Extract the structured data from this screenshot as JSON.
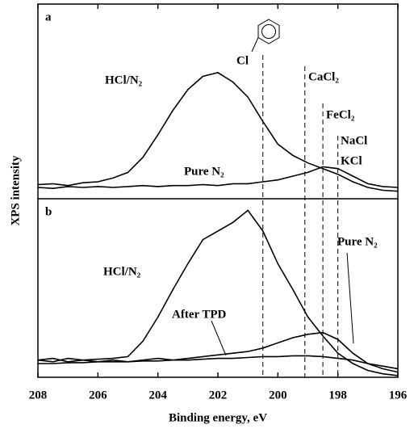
{
  "ylabel": "XPS intensity",
  "reference_lines": [
    {
      "labels": [
        "Cl"
      ],
      "x": 200.5
    },
    {
      "labels": [
        "CaCl₂"
      ],
      "x": 199.1
    },
    {
      "labels": [
        "FeCl₂"
      ],
      "x": 198.5
    },
    {
      "labels": [
        "NaCl",
        "KCl"
      ],
      "x": 198.0
    }
  ],
  "chart_data": [
    {
      "type": "line",
      "label": "a",
      "x": [
        208,
        207.5,
        207,
        206.5,
        206,
        205.5,
        205,
        204.5,
        204,
        203.5,
        203,
        202.5,
        202,
        201.5,
        201,
        200.5,
        200,
        199.5,
        199,
        198.5,
        198,
        197.5,
        197,
        196.5,
        196
      ],
      "xlim": [
        208,
        196
      ],
      "ylim": [
        0,
        100
      ],
      "series": [
        {
          "name": "HCl/N₂",
          "color": "#000000",
          "values": [
            7.5,
            8,
            7,
            8.5,
            9,
            11,
            14,
            22,
            34,
            47,
            58,
            65,
            67,
            62,
            54,
            41,
            29,
            23,
            19,
            16,
            13,
            9,
            6,
            4.5,
            4
          ]
        },
        {
          "name": "Pure N₂",
          "color": "#000000",
          "values": [
            6,
            5.5,
            6.5,
            6,
            6.5,
            6,
            6.5,
            7,
            6.5,
            7,
            7,
            7.5,
            7,
            8,
            8,
            9,
            10,
            12,
            14,
            17,
            16,
            12,
            8,
            6.5,
            6
          ]
        }
      ]
    },
    {
      "type": "line",
      "label": "b",
      "xlabel": "Binding energy, eV",
      "x": [
        208,
        207.5,
        207,
        206.5,
        206,
        205.5,
        205,
        204.5,
        204,
        203.5,
        203,
        202.5,
        202,
        201.5,
        201,
        200.5,
        200,
        199.5,
        199,
        198.5,
        198,
        197.5,
        197,
        196.5,
        196
      ],
      "xlim": [
        208,
        196
      ],
      "ylim": [
        0,
        100
      ],
      "xticks": [
        208,
        206,
        204,
        202,
        200,
        198,
        196
      ],
      "series": [
        {
          "name": "HCl/N₂",
          "color": "#000000",
          "values": [
            10,
            9,
            11,
            10,
            10.5,
            11,
            12,
            21,
            35,
            51,
            66,
            80,
            85,
            90,
            97,
            85,
            66,
            51,
            35,
            24,
            14,
            8,
            4,
            2,
            1
          ]
        },
        {
          "name": "Pure N₂",
          "color": "#000000",
          "values": [
            10,
            11,
            9,
            10,
            9,
            10,
            9,
            10,
            11,
            10,
            11,
            12,
            13,
            14,
            15,
            17,
            20,
            23,
            25,
            26,
            22,
            14,
            8,
            5,
            3
          ]
        },
        {
          "name": "After TPD",
          "color": "#000000",
          "values": [
            8,
            8,
            8.5,
            8.5,
            9,
            9,
            9,
            9.5,
            9.5,
            10,
            10,
            10.5,
            11,
            11,
            11.5,
            12,
            12,
            12.5,
            12.5,
            12,
            11,
            10,
            8,
            6.5,
            5
          ]
        }
      ]
    }
  ]
}
